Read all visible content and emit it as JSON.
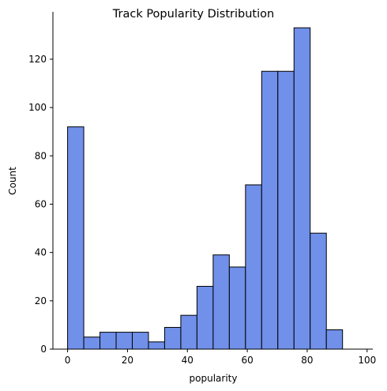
{
  "chart_data": {
    "type": "bar",
    "title": "Track Popularity Distribution",
    "xlabel": "popularity",
    "ylabel": "Count",
    "xlim": [
      -4.9,
      101.9
    ],
    "ylim": [
      0,
      139.6
    ],
    "x_ticks": [
      0,
      20,
      40,
      60,
      80,
      100
    ],
    "y_ticks": [
      0,
      20,
      40,
      60,
      80,
      100,
      120
    ],
    "bin_edges": [
      0,
      5.4,
      10.8,
      16.2,
      21.6,
      27.0,
      32.4,
      37.8,
      43.2,
      48.6,
      54.0,
      59.4,
      64.8,
      70.2,
      75.6,
      81.0,
      86.4,
      91.8,
      97.2
    ],
    "values": [
      92,
      5,
      7,
      7,
      7,
      3,
      9,
      14,
      26,
      39,
      34,
      68,
      115,
      115,
      133,
      48,
      8,
      0
    ],
    "grid": false,
    "legend": "none",
    "bar_color": "#7090ea",
    "edge_color": "#000000"
  }
}
